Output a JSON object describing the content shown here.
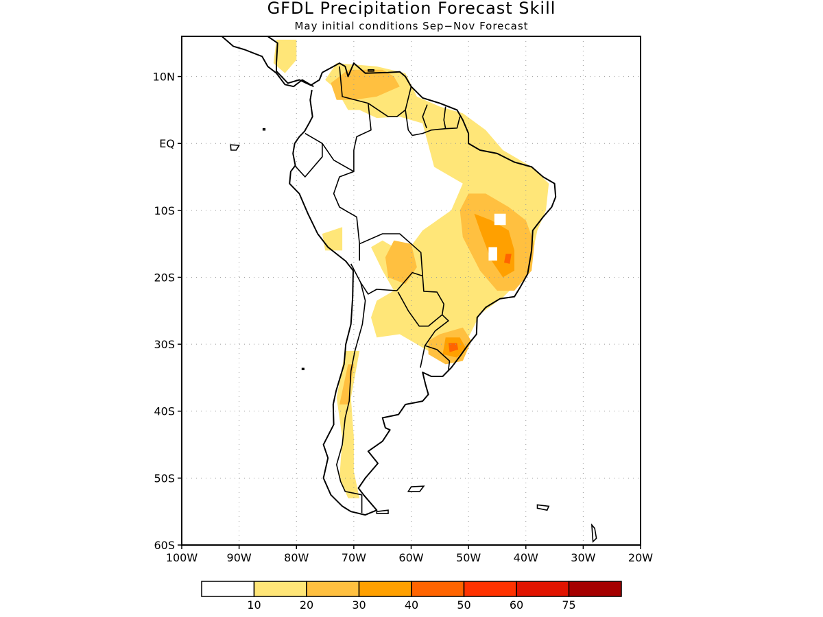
{
  "title": "GFDL Precipitation Forecast Skill",
  "subtitle": "May initial conditions   Sep−Nov Forecast",
  "map": {
    "region": "South America",
    "lon_range": [
      -100,
      -20
    ],
    "lat_range": [
      -60,
      16
    ],
    "gridlines": "dotted",
    "lat_ticks": [
      {
        "value": 10,
        "label": "10N"
      },
      {
        "value": 0,
        "label": "EQ"
      },
      {
        "value": -10,
        "label": "10S"
      },
      {
        "value": -20,
        "label": "20S"
      },
      {
        "value": -30,
        "label": "30S"
      },
      {
        "value": -40,
        "label": "40S"
      },
      {
        "value": -50,
        "label": "50S"
      },
      {
        "value": -60,
        "label": "60S"
      }
    ],
    "lon_ticks": [
      {
        "value": -100,
        "label": "100W"
      },
      {
        "value": -90,
        "label": "90W"
      },
      {
        "value": -80,
        "label": "80W"
      },
      {
        "value": -70,
        "label": "70W"
      },
      {
        "value": -60,
        "label": "60W"
      },
      {
        "value": -50,
        "label": "50W"
      },
      {
        "value": -40,
        "label": "40W"
      },
      {
        "value": -30,
        "label": "30W"
      },
      {
        "value": -20,
        "label": "20W"
      }
    ],
    "skill_regions": [
      {
        "level": 1,
        "pts": [
          [
            -73,
            12
          ],
          [
            -66,
            11.5
          ],
          [
            -61,
            10.5
          ],
          [
            -59,
            7
          ],
          [
            -55,
            5.5
          ],
          [
            -51,
            4.5
          ],
          [
            -47,
            2
          ],
          [
            -44,
            -1
          ],
          [
            -39,
            -3.5
          ],
          [
            -36,
            -6
          ],
          [
            -36.5,
            -10
          ],
          [
            -38,
            -13
          ],
          [
            -39,
            -17
          ],
          [
            -40.5,
            -20
          ],
          [
            -44,
            -23
          ],
          [
            -48,
            -25.5
          ],
          [
            -50,
            -29
          ],
          [
            -52,
            -32
          ],
          [
            -55,
            -32.5
          ],
          [
            -57,
            -31
          ],
          [
            -60,
            -29.5
          ],
          [
            -62,
            -28.5
          ],
          [
            -66,
            -29
          ],
          [
            -67,
            -26
          ],
          [
            -66,
            -23.5
          ],
          [
            -63,
            -22
          ],
          [
            -65,
            -19
          ],
          [
            -67,
            -15.5
          ],
          [
            -65,
            -14.5
          ],
          [
            -61,
            -16.5
          ],
          [
            -58,
            -13
          ],
          [
            -53,
            -10
          ],
          [
            -51,
            -6
          ],
          [
            -56,
            -3.5
          ],
          [
            -58,
            3
          ],
          [
            -62,
            4
          ],
          [
            -66,
            3.8
          ],
          [
            -69,
            5
          ],
          [
            -71,
            5
          ],
          [
            -73,
            8
          ],
          [
            -75,
            9.5
          ]
        ]
      },
      {
        "level": 1,
        "pts": [
          [
            -83.5,
            15.5
          ],
          [
            -80,
            15.5
          ],
          [
            -80,
            12.5
          ],
          [
            -82,
            10.5
          ],
          [
            -84,
            12
          ]
        ]
      },
      {
        "level": 1,
        "pts": [
          [
            -71.5,
            -31
          ],
          [
            -69,
            -31
          ],
          [
            -70.5,
            -38
          ],
          [
            -70,
            -44
          ],
          [
            -70,
            -49
          ],
          [
            -69,
            -53
          ],
          [
            -71,
            -53
          ],
          [
            -72.5,
            -50
          ],
          [
            -72,
            -44
          ],
          [
            -73,
            -38
          ]
        ]
      },
      {
        "level": 1,
        "pts": [
          [
            -75.5,
            -13.5
          ],
          [
            -72,
            -12.5
          ],
          [
            -72,
            -16
          ],
          [
            -75,
            -16
          ]
        ]
      },
      {
        "level": 2,
        "pts": [
          [
            -71,
            11
          ],
          [
            -65,
            11
          ],
          [
            -63,
            10
          ],
          [
            -62,
            8.5
          ],
          [
            -66,
            7
          ],
          [
            -70,
            6.5
          ],
          [
            -73,
            6.5
          ],
          [
            -74,
            9
          ]
        ]
      },
      {
        "level": 2,
        "pts": [
          [
            -50,
            -7.5
          ],
          [
            -47,
            -7.5
          ],
          [
            -43,
            -9.5
          ],
          [
            -40,
            -11.5
          ],
          [
            -38.5,
            -15
          ],
          [
            -39,
            -19
          ],
          [
            -42,
            -22
          ],
          [
            -45,
            -22
          ],
          [
            -48,
            -19
          ],
          [
            -51,
            -14
          ],
          [
            -51.5,
            -10
          ]
        ]
      },
      {
        "level": 2,
        "pts": [
          [
            -63,
            -14.5
          ],
          [
            -60,
            -15
          ],
          [
            -59,
            -18.5
          ],
          [
            -61,
            -21
          ],
          [
            -64,
            -20
          ],
          [
            -64.5,
            -17
          ]
        ]
      },
      {
        "level": 2,
        "pts": [
          [
            -55,
            -28.5
          ],
          [
            -51,
            -27.5
          ],
          [
            -49.5,
            -29.5
          ],
          [
            -51,
            -32.5
          ],
          [
            -54,
            -33
          ],
          [
            -57,
            -31.5
          ],
          [
            -57,
            -29.5
          ]
        ]
      },
      {
        "level": 2,
        "pts": [
          [
            -71,
            -33
          ],
          [
            -70,
            -33
          ],
          [
            -71,
            -39
          ],
          [
            -72.5,
            -39
          ]
        ]
      },
      {
        "level": 3,
        "pts": [
          [
            -49,
            -10.5
          ],
          [
            -46,
            -11.5
          ],
          [
            -43,
            -13
          ],
          [
            -42,
            -16
          ],
          [
            -42,
            -19
          ],
          [
            -44,
            -20
          ],
          [
            -46,
            -17.5
          ],
          [
            -48,
            -13
          ]
        ]
      },
      {
        "level": 3,
        "pts": [
          [
            -54,
            -29
          ],
          [
            -51.5,
            -29
          ],
          [
            -50.5,
            -30.5
          ],
          [
            -52,
            -32
          ],
          [
            -54.5,
            -31.5
          ]
        ]
      },
      {
        "level": 4,
        "pts": [
          [
            -53.5,
            -29.8
          ],
          [
            -52,
            -29.8
          ],
          [
            -51.8,
            -30.8
          ],
          [
            -53.3,
            -31.2
          ]
        ]
      },
      {
        "level": 4,
        "pts": [
          [
            -43.5,
            -16.5
          ],
          [
            -42.5,
            -16.5
          ],
          [
            -42.8,
            -18
          ],
          [
            -43.8,
            -17.8
          ]
        ]
      },
      {
        "level": 0,
        "pts": [
          [
            -45.5,
            -10.5
          ],
          [
            -43.5,
            -10.5
          ],
          [
            -43.5,
            -12.2
          ],
          [
            -45.5,
            -12.2
          ]
        ]
      },
      {
        "level": 0,
        "pts": [
          [
            -46.5,
            -15.5
          ],
          [
            -45,
            -15.5
          ],
          [
            -45,
            -17.5
          ],
          [
            -46.5,
            -17.5
          ]
        ]
      }
    ]
  },
  "colorbar": {
    "colors": [
      "#ffffff",
      "#ffe678",
      "#ffc040",
      "#ffa000",
      "#ff6400",
      "#ff3200",
      "#e11400",
      "#a50000"
    ],
    "labels": [
      "10",
      "20",
      "30",
      "40",
      "50",
      "60",
      "75"
    ]
  }
}
